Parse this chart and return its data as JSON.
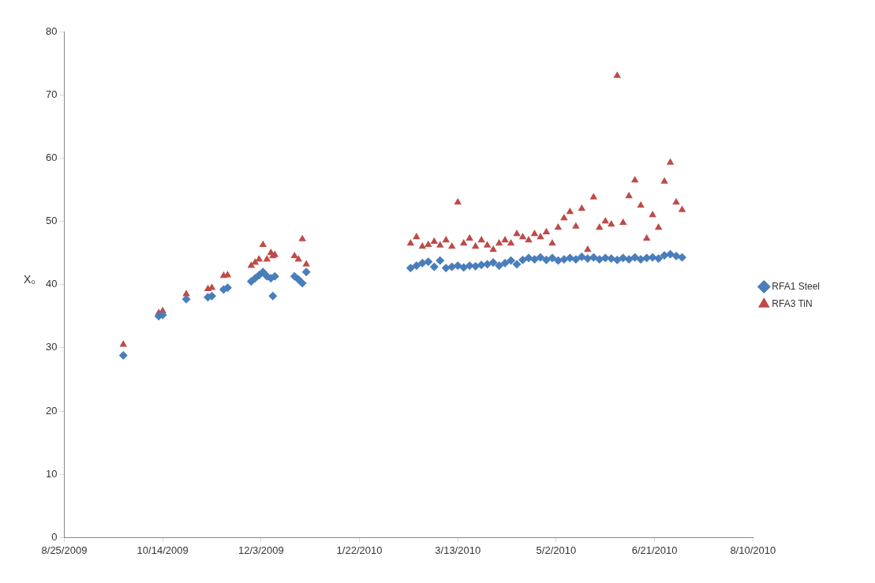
{
  "chart_data": {
    "type": "scatter",
    "ylabel": "X₀",
    "grid": false,
    "legend": "right",
    "xlim": [
      "2009-08-25",
      "2010-08-10"
    ],
    "xticks": [
      {
        "value": "2009-08-25",
        "label": "8/25/2009"
      },
      {
        "value": "2009-10-14",
        "label": "10/14/2009"
      },
      {
        "value": "2009-12-03",
        "label": "12/3/2009"
      },
      {
        "value": "2010-01-22",
        "label": "1/22/2010"
      },
      {
        "value": "2010-03-13",
        "label": "3/13/2010"
      },
      {
        "value": "2010-05-02",
        "label": "5/2/2010"
      },
      {
        "value": "2010-06-21",
        "label": "6/21/2010"
      },
      {
        "value": "2010-08-10",
        "label": "8/10/2010"
      }
    ],
    "ylim": [
      0,
      80
    ],
    "yticks": [
      0,
      10,
      20,
      30,
      40,
      50,
      60,
      70,
      80
    ],
    "x": [
      "2009-09-24",
      "2009-10-12",
      "2009-10-14",
      "2009-10-26",
      "2009-11-06",
      "2009-11-08",
      "2009-11-14",
      "2009-11-16",
      "2009-11-28",
      "2009-11-30",
      "2009-12-02",
      "2009-12-04",
      "2009-12-06",
      "2009-12-08",
      "2009-12-09",
      "2009-12-10",
      "2009-12-20",
      "2009-12-22",
      "2009-12-24",
      "2009-12-26",
      "2010-02-17",
      "2010-02-20",
      "2010-02-23",
      "2010-02-26",
      "2010-03-01",
      "2010-03-04",
      "2010-03-07",
      "2010-03-10",
      "2010-03-13",
      "2010-03-16",
      "2010-03-19",
      "2010-03-22",
      "2010-03-25",
      "2010-03-28",
      "2010-03-31",
      "2010-04-03",
      "2010-04-06",
      "2010-04-09",
      "2010-04-12",
      "2010-04-15",
      "2010-04-18",
      "2010-04-21",
      "2010-04-24",
      "2010-04-27",
      "2010-04-30",
      "2010-05-03",
      "2010-05-06",
      "2010-05-09",
      "2010-05-12",
      "2010-05-15",
      "2010-05-18",
      "2010-05-21",
      "2010-05-24",
      "2010-05-27",
      "2010-05-30",
      "2010-06-02",
      "2010-06-05",
      "2010-06-08",
      "2010-06-11",
      "2010-06-14",
      "2010-06-17",
      "2010-06-20",
      "2010-06-23",
      "2010-06-26",
      "2010-06-29",
      "2010-07-02",
      "2010-07-05"
    ],
    "series": [
      {
        "name": "RFA1 Steel",
        "color": "#4a7ebb",
        "marker": "diamond",
        "values": [
          28.8,
          35,
          35.2,
          37.7,
          38,
          38.2,
          39.2,
          39.5,
          40.5,
          41,
          41.5,
          42,
          41.3,
          41,
          38.2,
          41.3,
          41.3,
          40.8,
          40.2,
          42,
          42.6,
          43,
          43.4,
          43.6,
          42.8,
          43.8,
          42.6,
          42.8,
          43,
          42.7,
          43,
          42.9,
          43.1,
          43.2,
          43.5,
          43,
          43.4,
          43.8,
          43.2,
          43.9,
          44.2,
          44,
          44.3,
          43.9,
          44.2,
          43.8,
          44,
          44.2,
          44,
          44.4,
          44.1,
          44.3,
          44,
          44.2,
          44.1,
          43.9,
          44.2,
          44,
          44.3,
          44,
          44.2,
          44.3,
          44.1,
          44.6,
          44.8,
          44.5,
          44.3
        ]
      },
      {
        "name": "RFA3 TiN",
        "color": "#be4b48",
        "marker": "triangle",
        "values": [
          30.5,
          35.5,
          35.8,
          38.5,
          39.3,
          39.5,
          41.4,
          41.5,
          43,
          43.5,
          44,
          46.3,
          44,
          45,
          44.5,
          44.7,
          44.5,
          44,
          47.2,
          43.2,
          46.5,
          47.5,
          46,
          46.3,
          46.8,
          46.2,
          47,
          46,
          53,
          46.5,
          47.3,
          46,
          47,
          46.2,
          45.5,
          46.5,
          47,
          46.5,
          48,
          47.5,
          47,
          48,
          47.5,
          48.3,
          46.5,
          49,
          50.5,
          51.5,
          49.2,
          52,
          45.5,
          53.8,
          49,
          50,
          49.5,
          73,
          49.8,
          54,
          56.5,
          52.5,
          47.3,
          51,
          49,
          56.3,
          59.3,
          53,
          51.8
        ]
      }
    ]
  }
}
